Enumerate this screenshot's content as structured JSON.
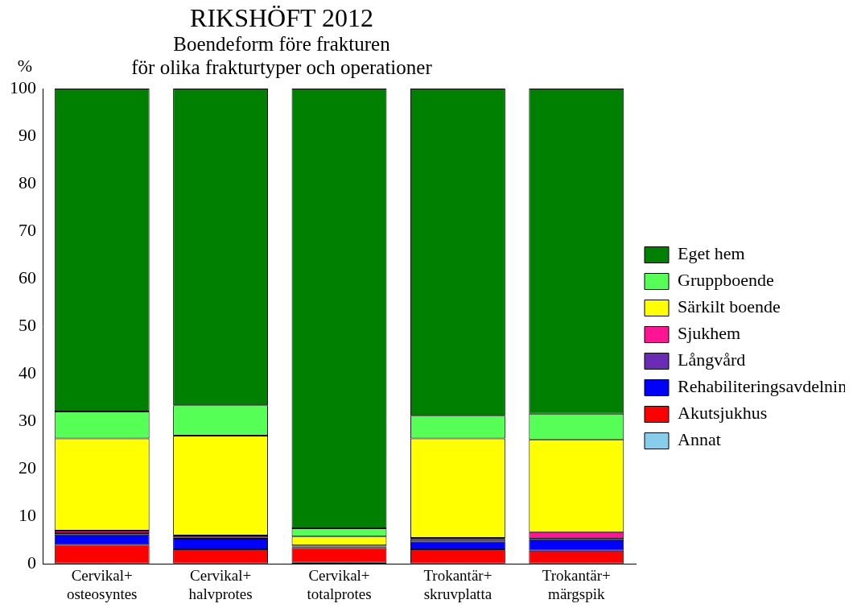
{
  "chart_data": {
    "type": "bar",
    "title": "RIKSHÖFT 2012",
    "subtitle": [
      "Boendeform före frakturen",
      "för olika frakturtyper och operationer"
    ],
    "y_label": "%",
    "stacked": true,
    "grid": false,
    "legend": "right",
    "categories": [
      [
        "Cervikal+",
        "osteosyntes"
      ],
      [
        "Cervikal+",
        "halvprotes"
      ],
      [
        "Cervikal+",
        "totalprotes"
      ],
      [
        "Trokantär+",
        "skruvplatta"
      ],
      [
        "Trokantär+",
        "märgspik"
      ]
    ],
    "series": [
      {
        "name": "Annat",
        "color": "#87ceeb",
        "values": [
          0.1,
          0.1,
          0.3,
          0.1,
          0.1
        ]
      },
      {
        "name": "Akutsjukhus",
        "color": "#ff0000",
        "values": [
          4.0,
          3.0,
          3.1,
          3.0,
          2.7
        ]
      },
      {
        "name": "Rehabiliteringsavdelning",
        "color": "#0000ff",
        "values": [
          2.1,
          2.2,
          0.2,
          1.6,
          2.4
        ]
      },
      {
        "name": "Långvård",
        "color": "#6a2bb5",
        "values": [
          0.3,
          0.3,
          0.1,
          0.5,
          0.1
        ]
      },
      {
        "name": "Sjukhem",
        "color": "#ff1493",
        "values": [
          0.5,
          0.4,
          0.2,
          0.3,
          1.4
        ]
      },
      {
        "name": "Särkilt boende",
        "color": "#ffff00",
        "values": [
          19.4,
          21.0,
          1.9,
          20.9,
          19.5
        ]
      },
      {
        "name": "Gruppboende",
        "color": "#55ff55",
        "values": [
          5.7,
          6.4,
          1.7,
          4.8,
          5.4
        ]
      },
      {
        "name": "Eget hem",
        "color": "#008000",
        "values": [
          67.9,
          66.6,
          92.5,
          68.8,
          68.4
        ]
      }
    ],
    "ylim": [
      0,
      100
    ],
    "yticks": [
      0,
      10,
      20,
      30,
      40,
      50,
      60,
      70,
      80,
      90,
      100
    ]
  }
}
